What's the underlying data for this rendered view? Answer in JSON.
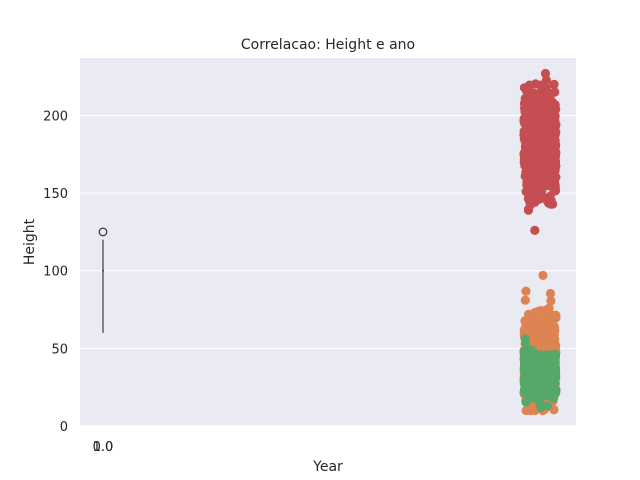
{
  "chart_data": {
    "type": "scatter",
    "title": "Correlacao: Height e ano",
    "xlabel": "Year",
    "ylabel": "Height",
    "ylim": [
      0,
      237
    ],
    "grid": true,
    "y_ticks": [
      "0",
      "50",
      "100",
      "150",
      "200"
    ],
    "y_tick_values": [
      0,
      50,
      100,
      150,
      200
    ],
    "x_ticks": [
      "0.0",
      "1.0"
    ],
    "colors": {
      "background": "#eaeaf2",
      "grid": "#ffffff",
      "red": "#c44e52",
      "orange": "#dd8452",
      "green": "#55a868",
      "box": "#3d3d3d"
    },
    "box": {
      "whisker_low": 60,
      "whisker_high": 120,
      "median": 100,
      "outlier": 125
    },
    "clusters": [
      {
        "color": "red",
        "y_min": 126,
        "y_max": 227,
        "density_center": 180
      },
      {
        "color": "orange",
        "y_min": 10,
        "y_max": 97,
        "density_center": 45
      },
      {
        "color": "green",
        "y_min": 12,
        "y_max": 56,
        "density_center": 32
      }
    ]
  }
}
